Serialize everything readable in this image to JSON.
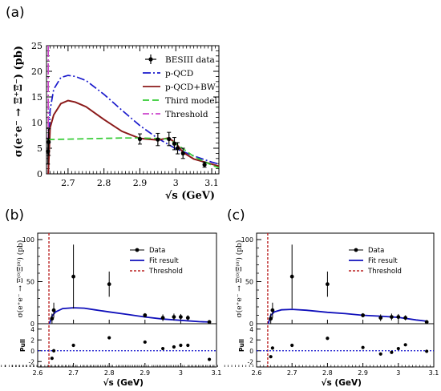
{
  "chart_data": [
    {
      "panel_label": "(a)",
      "type": "line",
      "xlabel": "√s (GeV)",
      "ylabel": "σ(e⁺e⁻ → Ξ⁺Ξ̄⁻) (pb)",
      "xlim": [
        2.64,
        3.12
      ],
      "ylim": [
        0,
        25
      ],
      "x_ticks": [
        "2.7",
        "2.8",
        "2.9",
        "3",
        "3.1"
      ],
      "y_ticks": [
        "0",
        "5",
        "10",
        "15",
        "20",
        "25"
      ],
      "legend_position": "top-right",
      "legend": [
        "BESIII data",
        "p-QCD",
        "p-QCD+BW",
        "Third model",
        "Threshold"
      ],
      "colors": {
        "data": "#000000",
        "pqcd": "#1a1acc",
        "pqcd_bw": "#8b1a1a",
        "third": "#33cc33",
        "threshold": "#cc44cc"
      },
      "data_points": [
        {
          "x": 2.644,
          "y": 4.4,
          "err": 2.5
        },
        {
          "x": 2.646,
          "y": 6.2,
          "err": 2.6
        },
        {
          "x": 2.9,
          "y": 6.8,
          "err": 1.0
        },
        {
          "x": 2.95,
          "y": 6.7,
          "err": 1.2
        },
        {
          "x": 2.981,
          "y": 6.8,
          "err": 1.3
        },
        {
          "x": 2.996,
          "y": 5.9,
          "err": 1.2
        },
        {
          "x": 3.005,
          "y": 5.0,
          "err": 1.1
        },
        {
          "x": 3.02,
          "y": 4.0,
          "err": 1.0
        },
        {
          "x": 3.08,
          "y": 1.8,
          "err": 0.5
        }
      ],
      "series": [
        {
          "name": "p-QCD",
          "x": [
            2.6449,
            2.65,
            2.66,
            2.68,
            2.7,
            2.72,
            2.75,
            2.8,
            2.85,
            2.9,
            2.95,
            3.0,
            3.05,
            3.1,
            3.12
          ],
          "y": [
            0,
            12.5,
            16.5,
            18.8,
            19.2,
            19.0,
            18.2,
            15.5,
            12.4,
            9.4,
            6.9,
            4.9,
            3.5,
            2.3,
            1.9
          ]
        },
        {
          "name": "p-QCD+BW",
          "x": [
            2.6449,
            2.65,
            2.66,
            2.68,
            2.7,
            2.72,
            2.75,
            2.8,
            2.85,
            2.9,
            2.95,
            2.98,
            3.0,
            3.02,
            3.05,
            3.1,
            3.12
          ],
          "y": [
            0,
            9.0,
            11.5,
            13.7,
            14.3,
            14.0,
            13.1,
            10.6,
            8.3,
            6.9,
            6.6,
            7.0,
            6.0,
            4.2,
            2.9,
            1.9,
            1.5
          ]
        },
        {
          "name": "Third model",
          "x": [
            2.6449,
            2.65,
            2.75,
            2.85,
            2.9,
            2.95,
            2.98,
            3.0,
            3.05,
            3.1,
            3.12
          ],
          "y": [
            6.7,
            6.7,
            6.85,
            7.0,
            7.0,
            6.9,
            6.8,
            5.9,
            3.4,
            1.7,
            1.2
          ]
        }
      ],
      "threshold_x": 2.6449
    },
    {
      "panel_label": "(b)",
      "type": "scatter",
      "xlabel": "√s (GeV)",
      "ylabel": "σ(e⁺e⁻ → Ξ⁽⁰⁾Ξ̄⁽⁰⁾) (pb)",
      "pull_ylabel": "Pull",
      "xlim": [
        2.6,
        3.1
      ],
      "ylim": [
        0,
        100
      ],
      "pull_ylim": [
        -3,
        5
      ],
      "x_ticks": [
        "2.6",
        "2.7",
        "2.8",
        "2.9",
        "3",
        "3.1"
      ],
      "y_ticks": [
        "0",
        "50",
        "100"
      ],
      "pull_y_ticks": [
        "-2",
        "0",
        "2",
        "4"
      ],
      "legend_position": "top-right",
      "legend": [
        "Data",
        "Fit result",
        "Threshold"
      ],
      "colors": {
        "data": "#000000",
        "fit": "#1010bb",
        "threshold": "#bb2222",
        "pull_line": "#1010cc"
      },
      "data_points": [
        {
          "x": 2.64,
          "y": 6.0,
          "err": 6.0
        },
        {
          "x": 2.645,
          "y": 16.0,
          "err": 9.0
        },
        {
          "x": 2.7,
          "y": 56.0,
          "err": 38.0
        },
        {
          "x": 2.8,
          "y": 47.0,
          "err": 15.0
        },
        {
          "x": 2.9,
          "y": 10.0,
          "err": 2.5
        },
        {
          "x": 2.95,
          "y": 7.0,
          "err": 4.0
        },
        {
          "x": 2.981,
          "y": 8.0,
          "err": 4.0
        },
        {
          "x": 3.0,
          "y": 8.0,
          "err": 3.5
        },
        {
          "x": 3.02,
          "y": 7.0,
          "err": 3.0
        },
        {
          "x": 3.08,
          "y": 2.0,
          "err": 1.5
        }
      ],
      "fit_curve": {
        "name": "Fit result",
        "x": [
          2.633,
          2.64,
          2.65,
          2.67,
          2.7,
          2.73,
          2.76,
          2.8,
          2.85,
          2.9,
          2.95,
          3.0,
          3.05,
          3.08
        ],
        "y": [
          0,
          9,
          14,
          18,
          19,
          18.5,
          16.5,
          14,
          11,
          8,
          5.5,
          4,
          2.5,
          2
        ]
      },
      "threshold_x": 2.6315,
      "pulls": [
        {
          "x": 2.64,
          "y": -1.4
        },
        {
          "x": 2.645,
          "y": 0.0
        },
        {
          "x": 2.7,
          "y": 1.0
        },
        {
          "x": 2.8,
          "y": 2.4
        },
        {
          "x": 2.9,
          "y": 1.6
        },
        {
          "x": 2.95,
          "y": 0.4
        },
        {
          "x": 2.981,
          "y": 0.7
        },
        {
          "x": 3.0,
          "y": 1.0
        },
        {
          "x": 3.02,
          "y": 1.0
        },
        {
          "x": 3.08,
          "y": -1.6
        }
      ]
    },
    {
      "panel_label": "(c)",
      "type": "scatter",
      "xlabel": "√s (GeV)",
      "ylabel": "σ(e⁺e⁻ → Ξ⁽⁰⁾Ξ̄⁽⁰⁾) (pb)",
      "pull_ylabel": "Pull",
      "xlim": [
        2.6,
        3.1
      ],
      "ylim": [
        0,
        100
      ],
      "pull_ylim": [
        -3,
        5
      ],
      "x_ticks": [
        "2.6",
        "2.7",
        "2.8",
        "2.9",
        "3",
        "3.1"
      ],
      "y_ticks": [
        "0",
        "50",
        "100"
      ],
      "pull_y_ticks": [
        "-2",
        "0",
        "2",
        "4"
      ],
      "legend_position": "top-right",
      "legend": [
        "Data",
        "Fit result",
        "Threshold"
      ],
      "colors": {
        "data": "#000000",
        "fit": "#1010bb",
        "threshold": "#bb2222",
        "pull_line": "#1010cc"
      },
      "data_points": [
        {
          "x": 2.64,
          "y": 6.0,
          "err": 6.0
        },
        {
          "x": 2.645,
          "y": 16.0,
          "err": 9.0
        },
        {
          "x": 2.7,
          "y": 56.0,
          "err": 38.0
        },
        {
          "x": 2.8,
          "y": 47.0,
          "err": 15.0
        },
        {
          "x": 2.9,
          "y": 10.0,
          "err": 2.5
        },
        {
          "x": 2.95,
          "y": 7.0,
          "err": 4.0
        },
        {
          "x": 2.981,
          "y": 8.0,
          "err": 4.0
        },
        {
          "x": 3.0,
          "y": 8.0,
          "err": 3.5
        },
        {
          "x": 3.02,
          "y": 7.0,
          "err": 3.0
        },
        {
          "x": 3.08,
          "y": 2.0,
          "err": 1.5
        }
      ],
      "fit_curve": {
        "name": "Fit result",
        "x": [
          2.633,
          2.64,
          2.65,
          2.67,
          2.7,
          2.74,
          2.8,
          2.85,
          2.9,
          2.95,
          3.0,
          3.05,
          3.08
        ],
        "y": [
          0,
          10,
          14,
          16.5,
          17,
          16,
          13.5,
          12,
          10,
          9,
          7.5,
          4.5,
          3
        ]
      },
      "threshold_x": 2.6315,
      "pulls": [
        {
          "x": 2.64,
          "y": -1.1
        },
        {
          "x": 2.645,
          "y": 0.5
        },
        {
          "x": 2.7,
          "y": 1.0
        },
        {
          "x": 2.8,
          "y": 2.3
        },
        {
          "x": 2.9,
          "y": 0.6
        },
        {
          "x": 2.95,
          "y": -0.6
        },
        {
          "x": 2.981,
          "y": -0.3
        },
        {
          "x": 3.0,
          "y": 0.4
        },
        {
          "x": 3.02,
          "y": 1.1
        },
        {
          "x": 3.08,
          "y": -0.1
        }
      ]
    }
  ]
}
